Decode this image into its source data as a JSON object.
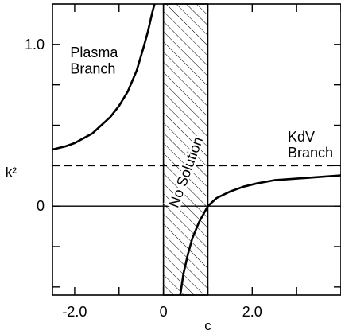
{
  "chart_data": {
    "type": "line",
    "title": "",
    "xlabel": "c",
    "ylabel": "k²",
    "xlim": [
      -2.5,
      4.0
    ],
    "ylim": [
      -0.55,
      1.25
    ],
    "x_ticks": [
      {
        "value": -2.0,
        "label": "-2.0"
      },
      {
        "value": 0,
        "label": "0"
      },
      {
        "value": 2.0,
        "label": "2.0"
      }
    ],
    "y_ticks": [
      {
        "value": 0,
        "label": "0"
      },
      {
        "value": 1.0,
        "label": "1.0"
      }
    ],
    "grid": false,
    "no_solution_band": {
      "x_from": 0,
      "x_to": 1,
      "label": "No Solution",
      "fill": "hatched"
    },
    "dashed_line": {
      "y": 0.25
    },
    "zero_line": {
      "y": 0
    },
    "series": [
      {
        "name": "Plasma Branch",
        "x": [
          -2.5,
          -2.2,
          -2.0,
          -1.8,
          -1.6,
          -1.4,
          -1.2,
          -1.0,
          -0.8,
          -0.6,
          -0.45,
          -0.35,
          -0.25,
          -0.2
        ],
        "y": [
          0.35,
          0.37,
          0.39,
          0.42,
          0.45,
          0.5,
          0.55,
          0.62,
          0.71,
          0.84,
          0.98,
          1.08,
          1.2,
          1.25
        ]
      },
      {
        "name": "KdV Branch",
        "x": [
          0.38,
          0.45,
          0.55,
          0.65,
          0.8,
          1.0,
          1.2,
          1.5,
          1.8,
          2.1,
          2.5,
          3.0,
          3.5,
          4.0
        ],
        "y": [
          -0.55,
          -0.42,
          -0.3,
          -0.2,
          -0.1,
          0.0,
          0.05,
          0.09,
          0.12,
          0.14,
          0.16,
          0.17,
          0.18,
          0.19
        ]
      }
    ],
    "annotations": [
      {
        "text": "Plasma",
        "x": -2.1,
        "y": 0.92
      },
      {
        "text": "Branch",
        "x": -2.1,
        "y": 0.82
      },
      {
        "text": "KdV",
        "x": 2.8,
        "y": 0.4
      },
      {
        "text": "Branch",
        "x": 2.8,
        "y": 0.3
      }
    ]
  }
}
